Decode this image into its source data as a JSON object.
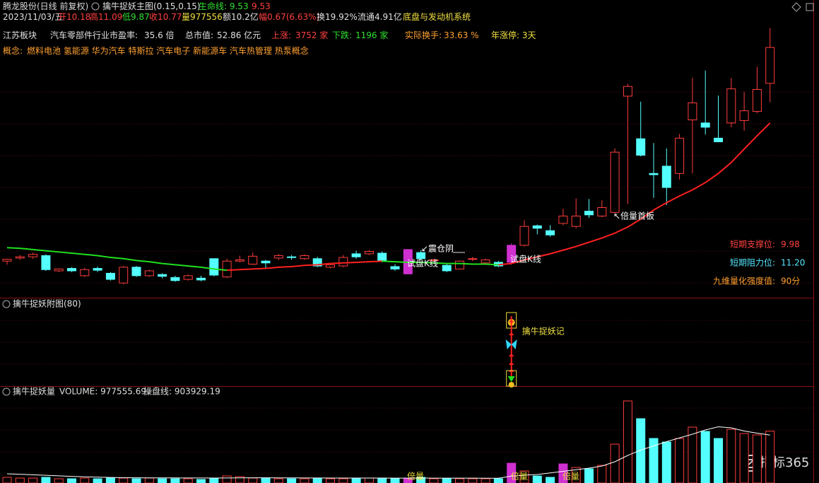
{
  "header": {
    "line1": {
      "stock": "腾龙股份(日线 前复权)",
      "indicator": "擒牛捉妖主图(0.15,0.15)",
      "life_line_label": "生命线: 9.53",
      "life_line_value": "9.53"
    },
    "line2": {
      "date": "2023/11/03/五",
      "open": "开10.18",
      "high": "高11.09",
      "low": "低9.87",
      "close": "收10.77",
      "volume": "量977556",
      "amount": "额10.2亿",
      "change": "幅0.67(6.63%)",
      "turnover": "换19.92%",
      "float": "流通4.91亿",
      "sector": "底盘与发动机系统"
    },
    "line3": {
      "board": "江苏板块",
      "pe_label": "汽车零部件行业市盈率:",
      "pe_value": "35.6 倍",
      "cap_label": "总市值:",
      "cap_value": "52.86 亿元",
      "up_label": "上涨:",
      "up_value": "3752 家",
      "down_label": "下跌:",
      "down_value": "1196 家",
      "turnover_label": "实际换手:",
      "turnover_value": "33.63 %",
      "limit_up": "年涨停: 3天"
    },
    "concepts_label": "概念:",
    "concepts": "燃料电池 氢能源 华为汽车 特斯拉 汽车电子 新能源车 汽车热管理 热泵概念"
  },
  "watermark": "指标365",
  "chart_data": [
    {
      "type": "candlestick",
      "open": [
        7.26,
        7.31,
        7.33,
        7.35,
        7.1,
        7.14,
        7.02,
        7.14,
        7.06,
        6.9,
        7.16,
        7.02,
        7.04,
        6.99,
        6.96,
        6.98,
        7.3,
        7.0,
        7.26,
        7.21,
        7.26,
        7.31,
        7.33,
        7.3,
        7.3,
        7.16,
        7.18,
        7.38,
        7.38,
        7.39,
        7.17,
        7.05,
        7.4,
        7.27,
        7.19,
        7.13,
        7.29,
        7.23,
        7.24,
        7.24,
        7.52,
        7.84,
        7.76,
        7.88,
        7.83,
        8.08,
        8.0,
        8.06,
        9.97,
        9.27,
        8.7,
        8.82,
        8.7,
        9.58,
        9.53,
        9.28,
        9.53,
        9.57,
        9.72,
        10.18
      ],
      "high": [
        7.3,
        7.36,
        7.4,
        7.37,
        7.14,
        7.16,
        7.15,
        7.17,
        7.08,
        7.18,
        7.18,
        7.12,
        7.06,
        7.02,
        7.04,
        7.02,
        7.3,
        7.3,
        7.35,
        7.4,
        7.28,
        7.38,
        7.36,
        7.37,
        7.33,
        7.22,
        7.36,
        7.43,
        7.44,
        7.42,
        7.21,
        7.46,
        7.44,
        7.3,
        7.22,
        7.27,
        7.33,
        7.3,
        7.26,
        7.55,
        7.93,
        7.86,
        7.85,
        8.12,
        8.29,
        8.28,
        8.26,
        9.11,
        10.17,
        9.88,
        9.2,
        9.11,
        9.35,
        10.27,
        10.39,
        9.98,
        10.27,
        10.04,
        10.45,
        11.09
      ],
      "low": [
        7.2,
        7.28,
        7.3,
        7.1,
        7.08,
        7.08,
        7.0,
        7.08,
        6.94,
        6.88,
        7.0,
        7.0,
        6.98,
        6.92,
        6.94,
        6.93,
        7.01,
        6.98,
        7.24,
        7.2,
        7.14,
        7.28,
        7.28,
        7.28,
        7.16,
        7.14,
        7.16,
        7.3,
        7.36,
        7.24,
        7.1,
        7.04,
        7.28,
        7.25,
        7.08,
        7.12,
        7.26,
        7.21,
        7.16,
        7.2,
        7.5,
        7.7,
        7.66,
        7.85,
        7.8,
        7.97,
        7.98,
        8.04,
        8.2,
        8.98,
        8.3,
        8.18,
        8.6,
        8.7,
        9.34,
        9.22,
        9.46,
        9.4,
        9.69,
        9.87
      ],
      "close": [
        7.29,
        7.33,
        7.37,
        7.12,
        7.13,
        7.1,
        7.12,
        7.11,
        6.96,
        7.16,
        7.02,
        7.1,
        7.01,
        6.94,
        7.02,
        6.95,
        7.03,
        7.26,
        7.28,
        7.34,
        7.23,
        7.35,
        7.32,
        7.35,
        7.18,
        7.2,
        7.32,
        7.33,
        7.42,
        7.26,
        7.13,
        7.45,
        7.3,
        7.28,
        7.1,
        7.26,
        7.3,
        7.28,
        7.18,
        7.52,
        7.83,
        7.8,
        7.69,
        8.0,
        8.0,
        8.02,
        8.14,
        9.05,
        10.13,
        9.0,
        8.68,
        8.47,
        9.28,
        9.86,
        9.46,
        9.22,
        10.09,
        9.73,
        10.08,
        10.77
      ],
      "ylim": [
        6.67,
        11.55
      ],
      "up_color": "#ff3c3c",
      "down_color": "#54ffff",
      "highlight_color": "#d030d0",
      "highlighted": [
        31,
        39
      ],
      "series": [
        {
          "values": [
            7.48,
            7.47,
            7.45,
            7.43,
            7.41,
            7.39,
            7.37,
            7.35,
            7.32,
            7.3,
            7.27,
            7.25,
            7.22,
            7.2,
            7.18,
            7.16,
            7.13,
            7.11,
            7.12,
            7.13,
            7.14,
            7.16,
            7.17,
            7.19,
            7.2,
            7.22,
            7.23,
            7.24,
            7.25,
            7.26,
            7.25,
            7.24,
            7.24,
            7.23,
            7.22,
            7.22,
            7.21,
            7.21,
            7.2,
            7.22,
            7.28,
            7.33,
            7.38,
            7.44,
            7.5,
            7.57,
            7.64,
            7.72,
            7.82,
            7.95,
            8.1,
            8.22,
            8.33,
            8.43,
            8.55,
            8.7,
            8.88,
            9.1,
            9.32,
            9.53
          ],
          "up_color": "#ff2020",
          "down_color": "#20e020"
        }
      ],
      "annotations": [
        "↙震仓阴",
        "试盘K线",
        "试盘K线",
        "↖倍量首板"
      ],
      "levels": [
        {
          "name": "短期支撑位:",
          "value": 9.98,
          "color": "#ff4040"
        },
        {
          "name": "短期阻力位:",
          "value": 11.2,
          "value_label": "11.20",
          "color": "#54e8ff"
        },
        {
          "name": "九维量化强度值:",
          "value": 90,
          "value_label": "90分",
          "color": "#ffa030"
        }
      ]
    },
    {
      "type": "signal",
      "title": "擒牛捉妖附图(80)",
      "annotation": "擒牛捉妖记"
    },
    {
      "type": "volume",
      "title": "擒牛捉妖量",
      "volume_label": "VOLUME: 977555.69",
      "line_label": "操盘线: 903929.19",
      "ylim": [
        0,
        1800000
      ],
      "values": [
        107000,
        93000,
        93000,
        107000,
        80000,
        80000,
        93000,
        80000,
        93000,
        93000,
        80000,
        93000,
        80000,
        80000,
        80000,
        67000,
        80000,
        133000,
        120000,
        93000,
        93000,
        80000,
        80000,
        80000,
        93000,
        80000,
        80000,
        93000,
        93000,
        93000,
        80000,
        93000,
        107000,
        80000,
        80000,
        80000,
        80000,
        80000,
        80000,
        373000,
        227000,
        133000,
        107000,
        360000,
        293000,
        267000,
        333000,
        733000,
        1547000,
        1213000,
        840000,
        773000,
        840000,
        1053000,
        973000,
        840000,
        1013000,
        933000,
        907000,
        977556
      ],
      "series": [
        {
          "values": [
            173000,
            165000,
            155000,
            145000,
            135000,
            125000,
            117000,
            110000,
            105000,
            100000,
            98000,
            97000,
            96000,
            96000,
            95000,
            95000,
            94000,
            95000,
            97000,
            98000,
            98000,
            97000,
            96000,
            95000,
            95000,
            94000,
            94000,
            93000,
            93000,
            93000,
            92000,
            92000,
            93000,
            92000,
            92000,
            91000,
            91000,
            90000,
            90000,
            130000,
            150000,
            160000,
            190000,
            220000,
            250000,
            280000,
            320000,
            400000,
            520000,
            620000,
            700000,
            780000,
            850000,
            920000,
            1000000,
            1060000,
            1040000,
            980000,
            940000,
            903929
          ],
          "color": "#ffffff"
        }
      ],
      "annotations": [
        "倍量",
        "倍量",
        "倍量"
      ]
    }
  ]
}
